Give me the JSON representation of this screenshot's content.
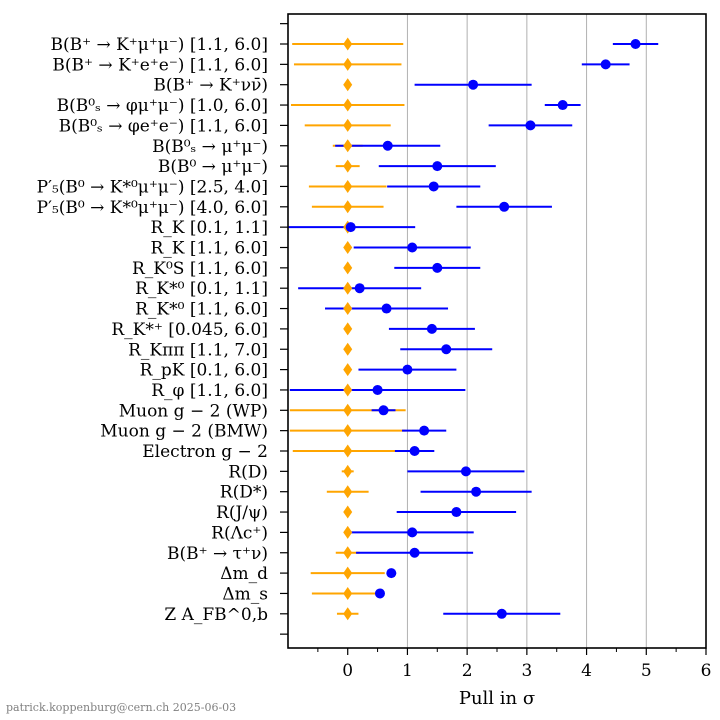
{
  "chart_data": {
    "type": "scatter",
    "title": "",
    "xlabel": "Pull in σ",
    "ylabel": "",
    "xlim": [
      -1,
      6
    ],
    "x_ticks": [
      "0",
      "1",
      "2",
      "3",
      "4",
      "5",
      "6"
    ],
    "grid": "vertical",
    "footer": "patrick.koppenburg@cern.ch 2025-06-03",
    "colors": {
      "orange": "#FFA500",
      "blue": "#0000FF",
      "grid": "#b0b0b0"
    },
    "categories": [
      "B(B⁺ → K⁺μ⁺μ⁻) [1.1, 6.0]",
      "B(B⁺ → K⁺e⁺e⁻) [1.1, 6.0]",
      "B(B⁺ → K⁺νν̄)",
      "B(B⁰ₛ → φμ⁺μ⁻) [1.0, 6.0]",
      "B(B⁰ₛ → φe⁺e⁻) [1.1, 6.0]",
      "B(B⁰ₛ → μ⁺μ⁻)",
      "B(B⁰ → μ⁺μ⁻)",
      "P′₅(B⁰ → K*⁰μ⁺μ⁻) [2.5, 4.0]",
      "P′₅(B⁰ → K*⁰μ⁺μ⁻) [4.0, 6.0]",
      "R_K [0.1, 1.1]",
      "R_K [1.1, 6.0]",
      "R_K⁰S [1.1, 6.0]",
      "R_K*⁰ [0.1, 1.1]",
      "R_K*⁰ [1.1, 6.0]",
      "R_K*⁺ [0.045, 6.0]",
      "R_Kππ [1.1, 7.0]",
      "R_pK [0.1, 6.0]",
      "R_φ [1.1, 6.0]",
      "Muon g − 2 (WP)",
      "Muon g − 2 (BMW)",
      "Electron g − 2",
      "R(D)",
      "R(D*)",
      "R(J/ψ)",
      "R(Λc⁺)",
      "B(B⁺ → τ⁺ν)",
      "Δm_d",
      "Δm_s",
      "Z A_FB^0,b"
    ],
    "series": [
      {
        "marker": "diamond",
        "color": "orange",
        "values": [
          0,
          0,
          0,
          0,
          0,
          0,
          0,
          0,
          0,
          0,
          0,
          0,
          0,
          0,
          0,
          0,
          0,
          0,
          0,
          0,
          0,
          0,
          0,
          0,
          0,
          0,
          0,
          0,
          0
        ],
        "errors": [
          0.93,
          0.9,
          0.05,
          0.95,
          0.72,
          0.25,
          0.2,
          0.65,
          0.6,
          0.05,
          0.05,
          0.05,
          0.05,
          0.05,
          0.05,
          0.05,
          0.05,
          0.05,
          0.97,
          0.97,
          0.92,
          0.1,
          0.35,
          0.05,
          0.05,
          0.2,
          0.62,
          0.6,
          0.18
        ]
      },
      {
        "marker": "circle",
        "color": "blue",
        "values": [
          4.82,
          4.32,
          2.1,
          3.6,
          3.06,
          0.67,
          1.5,
          1.44,
          2.62,
          0.05,
          1.08,
          1.5,
          0.2,
          0.65,
          1.41,
          1.65,
          1.0,
          0.5,
          0.6,
          1.28,
          1.12,
          1.98,
          2.15,
          1.82,
          1.08,
          1.12,
          0.73,
          0.54,
          2.58
        ],
        "errors": [
          0.38,
          0.4,
          0.98,
          0.3,
          0.7,
          0.88,
          0.98,
          0.78,
          0.8,
          1.08,
          0.98,
          0.72,
          1.03,
          1.03,
          0.72,
          0.77,
          0.82,
          1.47,
          0.2,
          0.37,
          0.33,
          0.98,
          0.93,
          1.0,
          1.03,
          0.98,
          0.08,
          0.05,
          0.98
        ]
      }
    ]
  }
}
